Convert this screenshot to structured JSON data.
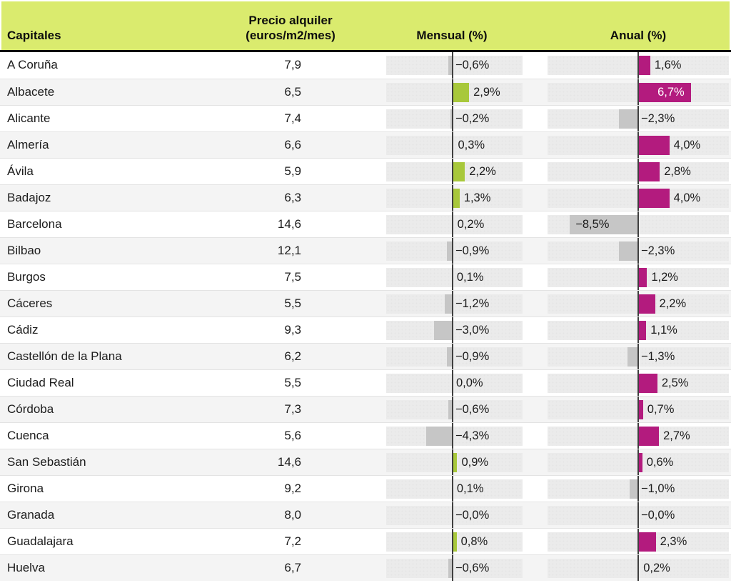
{
  "colors": {
    "header_bg": "#daeb6e",
    "positive_monthly": "#a8c83b",
    "positive_annual": "#b31b7e",
    "negative_bar": "#c6c6c6",
    "track": "#ebebeb",
    "zero_line": "#3f3f3f",
    "inside_label_on_annual": "#ffffff"
  },
  "chart_data": {
    "type": "table",
    "title": "",
    "headers": {
      "capitales": "Capitales",
      "precio_line1": "Precio alquiler",
      "precio_line2": "(euros/m2/mes)",
      "mensual": "Mensual (%)",
      "anual": "Anual (%)"
    },
    "columns": [
      "Capitales",
      "Precio alquiler (euros/m2/mes)",
      "Mensual (%)",
      "Anual (%)"
    ],
    "axis_range_pct": [
      -11,
      11
    ],
    "rows": [
      {
        "city": "A Coruña",
        "price": "7,9",
        "mensual": {
          "value": -0.6,
          "label": "−0,6%"
        },
        "anual": {
          "value": 1.6,
          "label": "1,6%"
        }
      },
      {
        "city": "Albacete",
        "price": "6,5",
        "mensual": {
          "value": 2.9,
          "label": "2,9%"
        },
        "anual": {
          "value": 6.7,
          "label": "6,7%"
        }
      },
      {
        "city": "Alicante",
        "price": "7,4",
        "mensual": {
          "value": -0.2,
          "label": "−0,2%"
        },
        "anual": {
          "value": -2.3,
          "label": "−2,3%"
        }
      },
      {
        "city": "Almería",
        "price": "6,6",
        "mensual": {
          "value": 0.3,
          "label": "0,3%"
        },
        "anual": {
          "value": 4.0,
          "label": "4,0%"
        }
      },
      {
        "city": "Ávila",
        "price": "5,9",
        "mensual": {
          "value": 2.2,
          "label": "2,2%"
        },
        "anual": {
          "value": 2.8,
          "label": "2,8%"
        }
      },
      {
        "city": "Badajoz",
        "price": "6,3",
        "mensual": {
          "value": 1.3,
          "label": "1,3%"
        },
        "anual": {
          "value": 4.0,
          "label": "4,0%"
        }
      },
      {
        "city": "Barcelona",
        "price": "14,6",
        "mensual": {
          "value": 0.2,
          "label": "0,2%"
        },
        "anual": {
          "value": -8.5,
          "label": "−8,5%"
        }
      },
      {
        "city": "Bilbao",
        "price": "12,1",
        "mensual": {
          "value": -0.9,
          "label": "−0,9%"
        },
        "anual": {
          "value": -2.3,
          "label": "−2,3%"
        }
      },
      {
        "city": "Burgos",
        "price": "7,5",
        "mensual": {
          "value": 0.1,
          "label": "0,1%"
        },
        "anual": {
          "value": 1.2,
          "label": "1,2%"
        }
      },
      {
        "city": "Cáceres",
        "price": "5,5",
        "mensual": {
          "value": -1.2,
          "label": "−1,2%"
        },
        "anual": {
          "value": 2.2,
          "label": "2,2%"
        }
      },
      {
        "city": "Cádiz",
        "price": "9,3",
        "mensual": {
          "value": -3.0,
          "label": "−3,0%"
        },
        "anual": {
          "value": 1.1,
          "label": "1,1%"
        }
      },
      {
        "city": "Castellón de la Plana",
        "price": "6,2",
        "mensual": {
          "value": -0.9,
          "label": "−0,9%"
        },
        "anual": {
          "value": -1.3,
          "label": "−1,3%"
        }
      },
      {
        "city": "Ciudad Real",
        "price": "5,5",
        "mensual": {
          "value": 0.0,
          "label": "0,0%"
        },
        "anual": {
          "value": 2.5,
          "label": "2,5%"
        }
      },
      {
        "city": "Córdoba",
        "price": "7,3",
        "mensual": {
          "value": -0.6,
          "label": "−0,6%"
        },
        "anual": {
          "value": 0.7,
          "label": "0,7%"
        }
      },
      {
        "city": "Cuenca",
        "price": "5,6",
        "mensual": {
          "value": -4.3,
          "label": "−4,3%"
        },
        "anual": {
          "value": 2.7,
          "label": "2,7%"
        }
      },
      {
        "city": "San Sebastián",
        "price": "14,6",
        "mensual": {
          "value": 0.9,
          "label": "0,9%"
        },
        "anual": {
          "value": 0.6,
          "label": "0,6%"
        }
      },
      {
        "city": "Girona",
        "price": "9,2",
        "mensual": {
          "value": 0.1,
          "label": "0,1%"
        },
        "anual": {
          "value": -1.0,
          "label": "−1,0%"
        }
      },
      {
        "city": "Granada",
        "price": "8,0",
        "mensual": {
          "value": 0.0,
          "label": "−0,0%"
        },
        "anual": {
          "value": 0.0,
          "label": "−0,0%"
        }
      },
      {
        "city": "Guadalajara",
        "price": "7,2",
        "mensual": {
          "value": 0.8,
          "label": "0,8%"
        },
        "anual": {
          "value": 2.3,
          "label": "2,3%"
        }
      },
      {
        "city": "Huelva",
        "price": "6,7",
        "mensual": {
          "value": -0.6,
          "label": "−0,6%"
        },
        "anual": {
          "value": 0.2,
          "label": "0,2%"
        }
      }
    ]
  }
}
